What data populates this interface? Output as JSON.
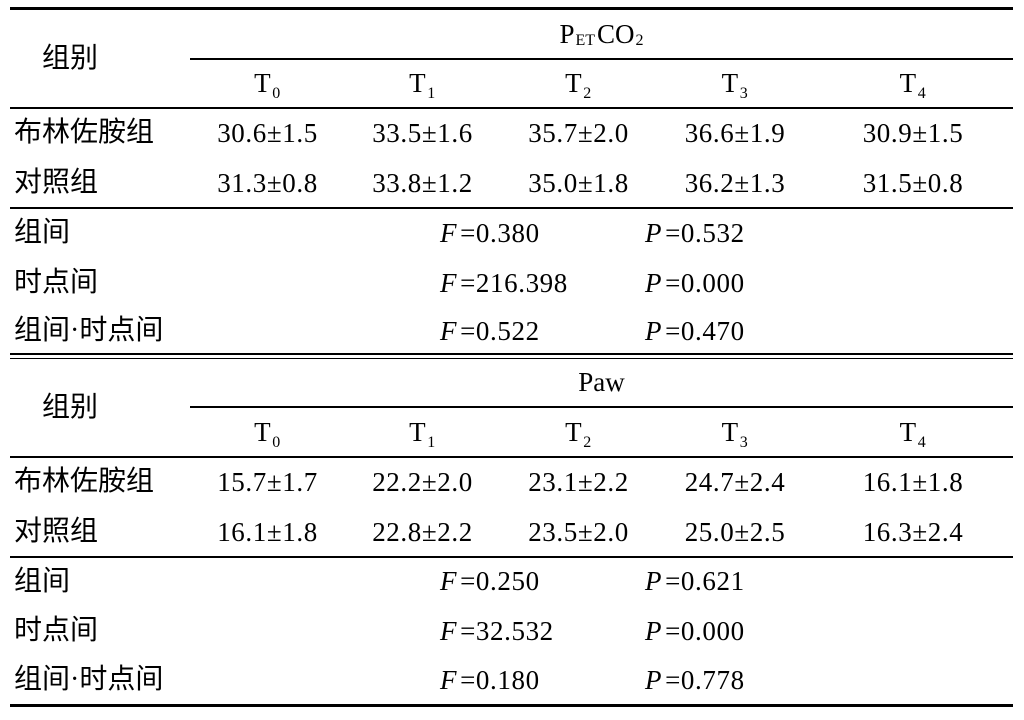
{
  "table": {
    "sections": [
      {
        "group_header": "组别",
        "measure": {
          "main": "P",
          "sub": "ET",
          "main2": "CO",
          "sub2": "2"
        },
        "timepoints": [
          {
            "main": "T",
            "sub": "0"
          },
          {
            "main": "T",
            "sub": "1"
          },
          {
            "main": "T",
            "sub": "2"
          },
          {
            "main": "T",
            "sub": "3"
          },
          {
            "main": "T",
            "sub": "4"
          }
        ],
        "rows": [
          {
            "label": "布林佐胺组",
            "values": [
              "30.6±1.5",
              "33.5±1.6",
              "35.7±2.0",
              "36.6±1.9",
              "30.9±1.5"
            ]
          },
          {
            "label": "对照组",
            "values": [
              "31.3±0.8",
              "33.8±1.2",
              "35.0±1.8",
              "36.2±1.3",
              "31.5±0.8"
            ]
          }
        ],
        "stats": [
          {
            "label": "组间",
            "f_symbol": "F",
            "f_value": "=0.380",
            "p_symbol": "P",
            "p_value": "=0.532"
          },
          {
            "label": "时点间",
            "f_symbol": "F",
            "f_value": "=216.398",
            "p_symbol": "P",
            "p_value": "=0.000"
          },
          {
            "label": "组间·时点间",
            "f_symbol": "F",
            "f_value": "=0.522",
            "p_symbol": "P",
            "p_value": "=0.470"
          }
        ]
      },
      {
        "group_header": "组别",
        "measure": {
          "main": "Paw"
        },
        "timepoints": [
          {
            "main": "T",
            "sub": "0"
          },
          {
            "main": "T",
            "sub": "1"
          },
          {
            "main": "T",
            "sub": "2"
          },
          {
            "main": "T",
            "sub": "3"
          },
          {
            "main": "T",
            "sub": "4"
          }
        ],
        "rows": [
          {
            "label": "布林佐胺组",
            "values": [
              "15.7±1.7",
              "22.2±2.0",
              "23.1±2.2",
              "24.7±2.4",
              "16.1±1.8"
            ]
          },
          {
            "label": "对照组",
            "values": [
              "16.1±1.8",
              "22.8±2.2",
              "23.5±2.0",
              "25.0±2.5",
              "16.3±2.4"
            ]
          }
        ],
        "stats": [
          {
            "label": "组间",
            "f_symbol": "F",
            "f_value": "=0.250",
            "p_symbol": "P",
            "p_value": "=0.621"
          },
          {
            "label": "时点间",
            "f_symbol": "F",
            "f_value": "=32.532",
            "p_symbol": "P",
            "p_value": "=0.000"
          },
          {
            "label": "组间·时点间",
            "f_symbol": "F",
            "f_value": "=0.180",
            "p_symbol": "P",
            "p_value": "=0.778"
          }
        ]
      }
    ]
  }
}
